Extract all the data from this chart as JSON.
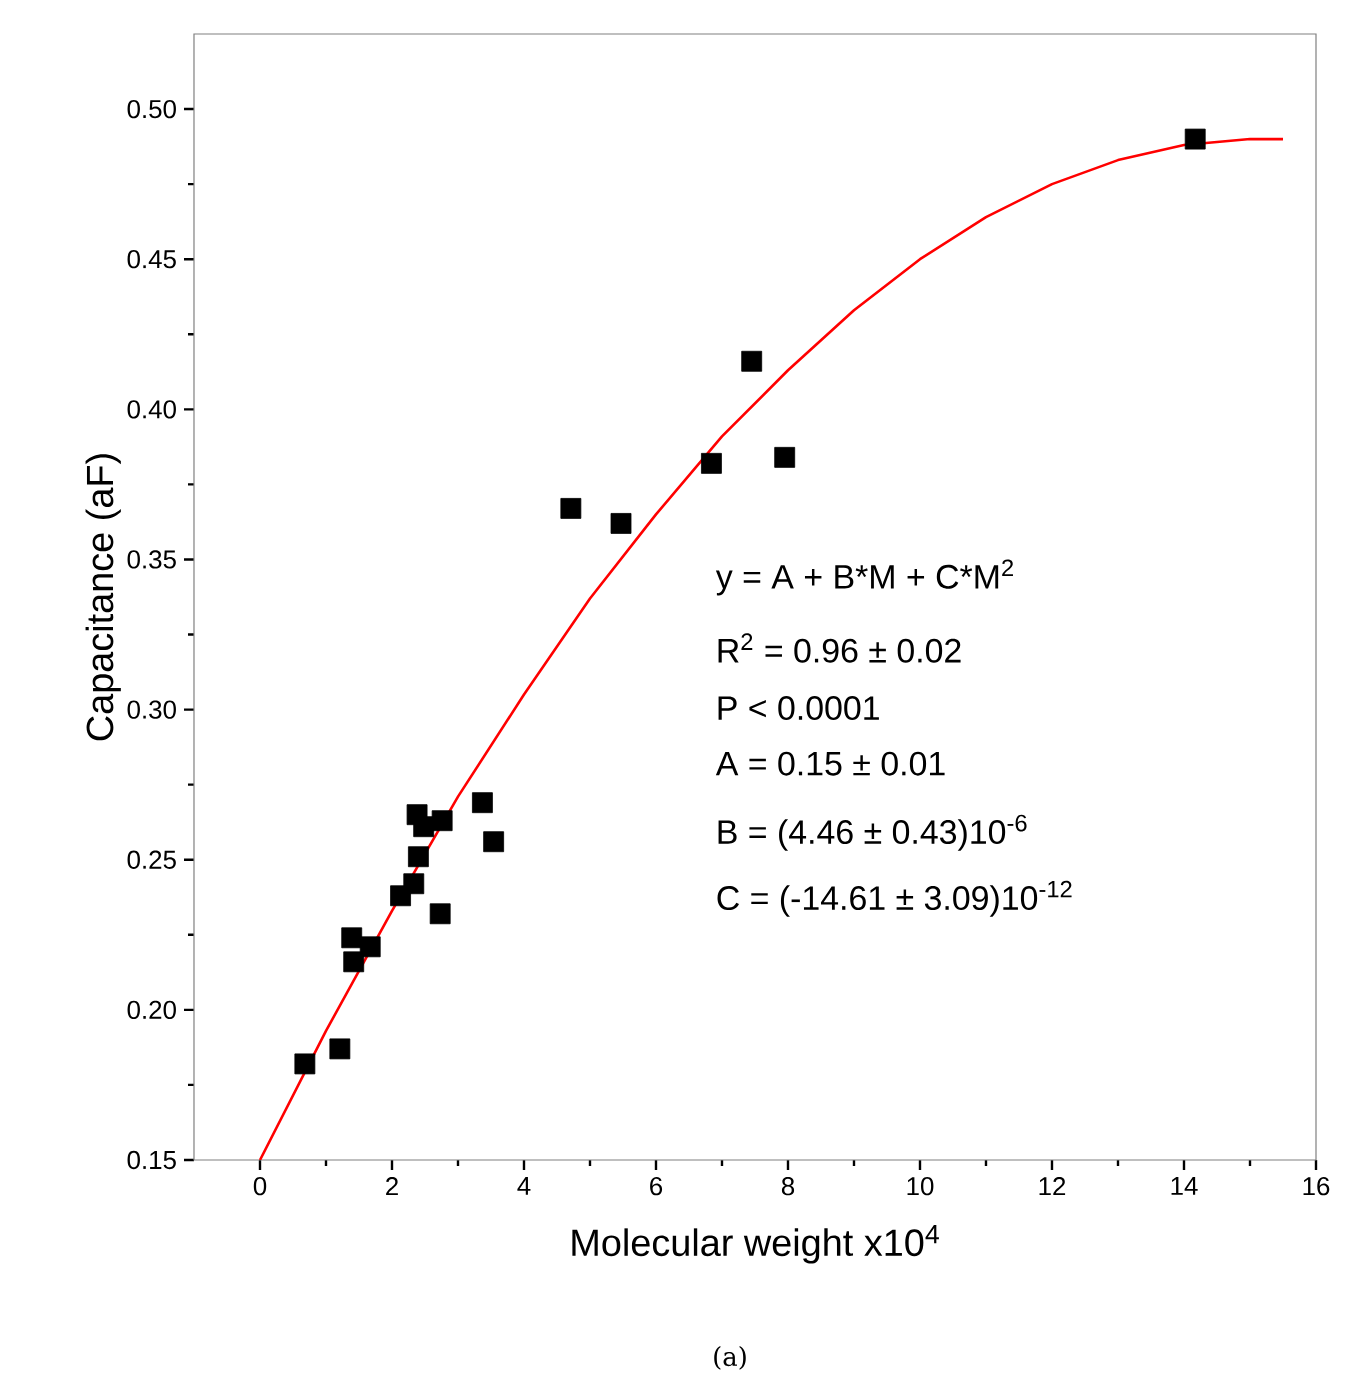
{
  "chart_data": {
    "type": "scatter",
    "xlabel": "Molecular weight  x10$^{4}$",
    "ylabel": "Capacitance (aF)",
    "xlim": [
      -1,
      16
    ],
    "ylim": [
      0.15,
      0.525
    ],
    "xticks": [
      0,
      2,
      4,
      6,
      8,
      10,
      12,
      14,
      16
    ],
    "yticks": [
      {
        "value": 0.15,
        "label": "0.15"
      },
      {
        "value": 0.2,
        "label": "0.20"
      },
      {
        "value": 0.25,
        "label": "0.25"
      },
      {
        "value": 0.3,
        "label": "0.30"
      },
      {
        "value": 0.35,
        "label": "0.35"
      },
      {
        "value": 0.4,
        "label": "0.40"
      },
      {
        "value": 0.45,
        "label": "0.45"
      },
      {
        "value": 0.5,
        "label": "0.50"
      }
    ],
    "grid": false,
    "legend": false,
    "series": [
      {
        "marker": "square",
        "color": "#000000",
        "x": [
          0.68,
          1.21,
          1.39,
          1.42,
          1.67,
          2.13,
          2.33,
          2.4,
          2.73,
          2.38,
          2.48,
          2.76,
          3.37,
          3.54,
          4.71,
          5.47,
          6.84,
          7.45,
          7.95,
          14.17
        ],
        "values": [
          0.182,
          0.187,
          0.224,
          0.216,
          0.221,
          0.238,
          0.242,
          0.251,
          0.232,
          0.265,
          0.261,
          0.263,
          0.269,
          0.256,
          0.367,
          0.362,
          0.382,
          0.416,
          0.384,
          0.49
        ]
      },
      {
        "type": "line",
        "marker": "none",
        "line_style": "solid",
        "color": "#ff0000",
        "x": [
          0,
          1,
          2,
          3,
          4,
          5,
          6,
          7,
          8,
          9,
          10,
          11,
          12,
          13,
          14,
          15,
          15.5
        ],
        "values": [
          0.15,
          0.193,
          0.233,
          0.271,
          0.305,
          0.337,
          0.365,
          0.391,
          0.413,
          0.433,
          0.45,
          0.464,
          0.475,
          0.483,
          0.488,
          0.49,
          0.49
        ]
      }
    ],
    "annotations": [
      "y = A + B*M + C*M$^{2}$",
      "R$^{2}$ =  0.96 ± 0.02",
      "P < 0.0001",
      "A = 0.15 ± 0.01",
      "B = (4.46 ±  0.43)10$^{-6}$",
      "C = (-14.61 ± 3.09)10$^{-12}$",
      "(a)"
    ]
  }
}
